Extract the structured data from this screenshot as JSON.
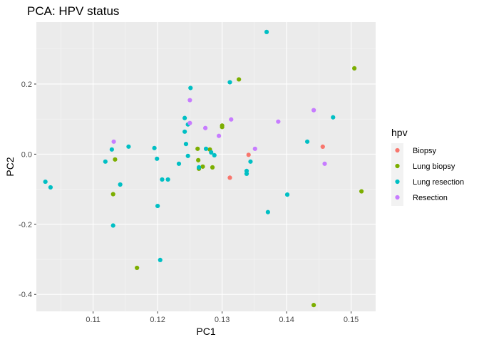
{
  "chart_data": {
    "type": "scatter",
    "title": "PCA: HPV status",
    "xlabel": "PC1",
    "ylabel": "PC2",
    "xlim": [
      0.1012,
      0.1538
    ],
    "ylim": [
      -0.4483,
      0.3767
    ],
    "x_ticks": [
      0.11,
      0.12,
      0.13,
      0.14,
      0.15
    ],
    "x_tick_labels": [
      "0.11",
      "0.12",
      "0.13",
      "0.14",
      "0.15"
    ],
    "y_ticks": [
      -0.4,
      -0.2,
      0.0,
      0.2
    ],
    "y_tick_labels": [
      "-0.4",
      "-0.2",
      "0.0",
      "0.2"
    ],
    "grid": true,
    "legend": {
      "title": "hpv",
      "position": "right"
    },
    "series": [
      {
        "name": "Biopsy",
        "color": "#F8766D",
        "points": [
          {
            "x": 0.1341,
            "y": -0.0019
          },
          {
            "x": 0.1312,
            "y": -0.0671
          },
          {
            "x": 0.1456,
            "y": 0.0213
          }
        ]
      },
      {
        "name": "Lung biopsy",
        "color": "#7CAE00",
        "points": [
          {
            "x": 0.1505,
            "y": 0.2448
          },
          {
            "x": 0.1326,
            "y": 0.2132
          },
          {
            "x": 0.13,
            "y": 0.0815
          },
          {
            "x": 0.13,
            "y": 0.0774
          },
          {
            "x": 0.1262,
            "y": 0.0153
          },
          {
            "x": 0.1281,
            "y": 0.0133
          },
          {
            "x": 0.1263,
            "y": -0.0172
          },
          {
            "x": 0.1134,
            "y": -0.0152
          },
          {
            "x": 0.127,
            "y": -0.0355
          },
          {
            "x": 0.1285,
            "y": -0.0376
          },
          {
            "x": 0.1264,
            "y": -0.0416
          },
          {
            "x": 0.1131,
            "y": -0.1141
          },
          {
            "x": 0.1516,
            "y": -0.106
          },
          {
            "x": 0.1168,
            "y": -0.3242
          },
          {
            "x": 0.1442,
            "y": -0.4303
          }
        ]
      },
      {
        "name": "Lung resection",
        "color": "#00BFC4",
        "points": [
          {
            "x": 0.1369,
            "y": 0.3485
          },
          {
            "x": 0.1251,
            "y": 0.1888
          },
          {
            "x": 0.1312,
            "y": 0.2051
          },
          {
            "x": 0.1472,
            "y": 0.1051
          },
          {
            "x": 0.1242,
            "y": 0.1031
          },
          {
            "x": 0.1247,
            "y": 0.0847
          },
          {
            "x": 0.1242,
            "y": 0.0642
          },
          {
            "x": 0.1244,
            "y": 0.029
          },
          {
            "x": 0.1432,
            "y": 0.0357
          },
          {
            "x": 0.1155,
            "y": 0.0215
          },
          {
            "x": 0.1195,
            "y": 0.0174
          },
          {
            "x": 0.1129,
            "y": 0.0133
          },
          {
            "x": 0.1275,
            "y": 0.0153
          },
          {
            "x": 0.1283,
            "y": 0.0051
          },
          {
            "x": 0.1288,
            "y": -0.0031
          },
          {
            "x": 0.1247,
            "y": -0.005
          },
          {
            "x": 0.1199,
            "y": -0.0131
          },
          {
            "x": 0.1119,
            "y": -0.0212
          },
          {
            "x": 0.1344,
            "y": -0.0212
          },
          {
            "x": 0.1264,
            "y": -0.0376
          },
          {
            "x": 0.1338,
            "y": -0.0478
          },
          {
            "x": 0.1338,
            "y": -0.056
          },
          {
            "x": 0.1233,
            "y": -0.0274
          },
          {
            "x": 0.1207,
            "y": -0.0723
          },
          {
            "x": 0.1216,
            "y": -0.0723
          },
          {
            "x": 0.1142,
            "y": -0.0866
          },
          {
            "x": 0.1026,
            "y": -0.0786
          },
          {
            "x": 0.1034,
            "y": -0.0946
          },
          {
            "x": 0.1401,
            "y": -0.1153
          },
          {
            "x": 0.1371,
            "y": -0.1653
          },
          {
            "x": 0.12,
            "y": -0.1477
          },
          {
            "x": 0.1131,
            "y": -0.2035
          },
          {
            "x": 0.1204,
            "y": -0.3018
          }
        ]
      },
      {
        "name": "Resection",
        "color": "#C77CFF",
        "points": [
          {
            "x": 0.125,
            "y": 0.1541
          },
          {
            "x": 0.1442,
            "y": 0.1255
          },
          {
            "x": 0.125,
            "y": 0.0888
          },
          {
            "x": 0.1314,
            "y": 0.099
          },
          {
            "x": 0.1387,
            "y": 0.0929
          },
          {
            "x": 0.1274,
            "y": 0.0745
          },
          {
            "x": 0.1295,
            "y": 0.0521
          },
          {
            "x": 0.1132,
            "y": 0.0357
          },
          {
            "x": 0.1351,
            "y": 0.0153
          },
          {
            "x": 0.1459,
            "y": -0.0274
          }
        ]
      }
    ]
  }
}
